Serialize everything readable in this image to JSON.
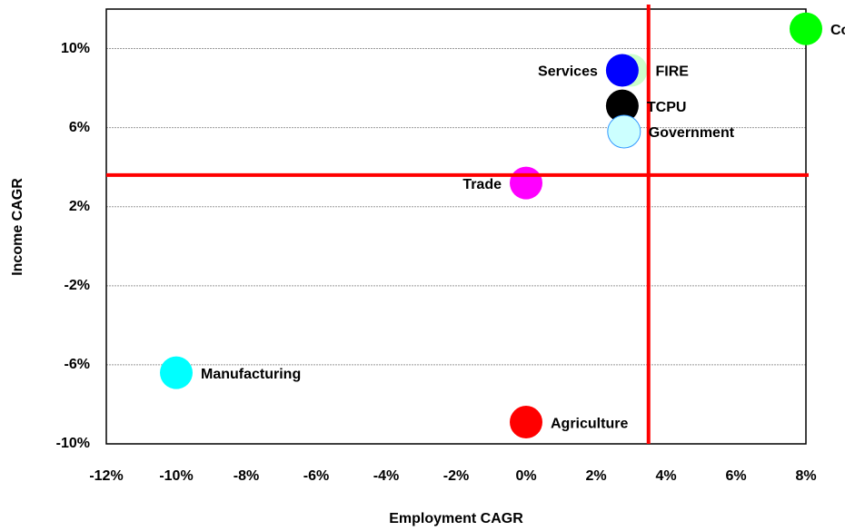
{
  "chart_data": {
    "type": "scatter",
    "xlabel": "Employment CAGR",
    "ylabel": "Income CAGR",
    "xlim": [
      -12,
      8
    ],
    "ylim": [
      -10,
      12
    ],
    "xticks": [
      {
        "value": -12,
        "label": "-12%"
      },
      {
        "value": -10,
        "label": "-10%"
      },
      {
        "value": -8,
        "label": "-8%"
      },
      {
        "value": -6,
        "label": "-6%"
      },
      {
        "value": -4,
        "label": "-4%"
      },
      {
        "value": -2,
        "label": "-2%"
      },
      {
        "value": 0,
        "label": "0%"
      },
      {
        "value": 2,
        "label": "2%"
      },
      {
        "value": 4,
        "label": "4%"
      },
      {
        "value": 6,
        "label": "6%"
      },
      {
        "value": 8,
        "label": "8%"
      }
    ],
    "yticks": [
      {
        "value": -10,
        "label": "-10%"
      },
      {
        "value": -6,
        "label": "-6%"
      },
      {
        "value": -2,
        "label": "-2%"
      },
      {
        "value": 2,
        "label": "2%"
      },
      {
        "value": 6,
        "label": "6%"
      },
      {
        "value": 10,
        "label": "10%"
      }
    ],
    "grid": true,
    "reference_lines": {
      "x": 3.5,
      "y": 3.6,
      "color": "#ff0000"
    },
    "series": [
      {
        "name": "Construction",
        "color": "#00ff00",
        "x": [
          8.0
        ],
        "values": [
          11.0
        ],
        "label_side": "right"
      },
      {
        "name": "FIRE",
        "color": "#ccffcc",
        "x": [
          3.0
        ],
        "values": [
          8.9
        ],
        "label_side": "right"
      },
      {
        "name": "Services",
        "color": "#0000ff",
        "x": [
          2.75
        ],
        "values": [
          8.9
        ],
        "label_side": "left"
      },
      {
        "name": "TCPU",
        "color": "#000000",
        "x": [
          2.75
        ],
        "values": [
          7.1
        ],
        "label_side": "right"
      },
      {
        "name": "Government",
        "color": "#ccffff",
        "x": [
          2.8
        ],
        "values": [
          5.8
        ],
        "label_side": "right"
      },
      {
        "name": "Trade",
        "color": "#ff00ff",
        "x": [
          0.0
        ],
        "values": [
          3.2
        ],
        "label_side": "left"
      },
      {
        "name": "Manufacturing",
        "color": "#00ffff",
        "x": [
          -10.0
        ],
        "values": [
          -6.4
        ],
        "label_side": "right"
      },
      {
        "name": "Agriculture",
        "color": "#ff0000",
        "x": [
          0.0
        ],
        "values": [
          -8.9
        ],
        "label_side": "right"
      }
    ]
  }
}
